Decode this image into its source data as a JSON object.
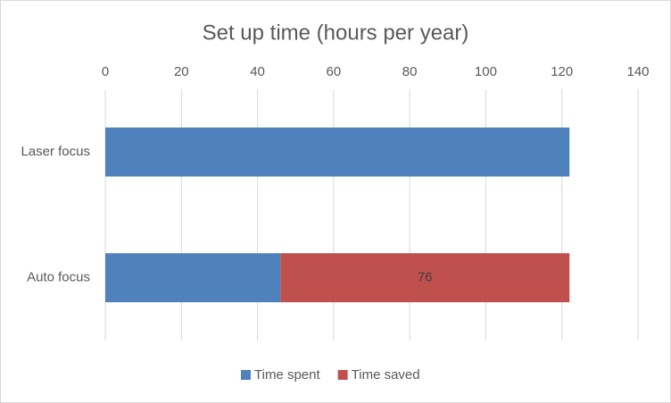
{
  "chart_data": {
    "type": "stacked-bar-horizontal",
    "title": "Set up time (hours per year)",
    "categories": [
      "Laser focus",
      "Auto focus"
    ],
    "series": [
      {
        "name": "Time spent",
        "color": "#4f81bd",
        "values": [
          122,
          46
        ]
      },
      {
        "name": "Time saved",
        "color": "#c0504d",
        "values": [
          null,
          76
        ],
        "data_labels": true
      }
    ],
    "xlim": [
      0,
      140
    ],
    "xticks": [
      0,
      20,
      40,
      60,
      80,
      100,
      120,
      140
    ],
    "grid": true,
    "legend": "bottom"
  }
}
